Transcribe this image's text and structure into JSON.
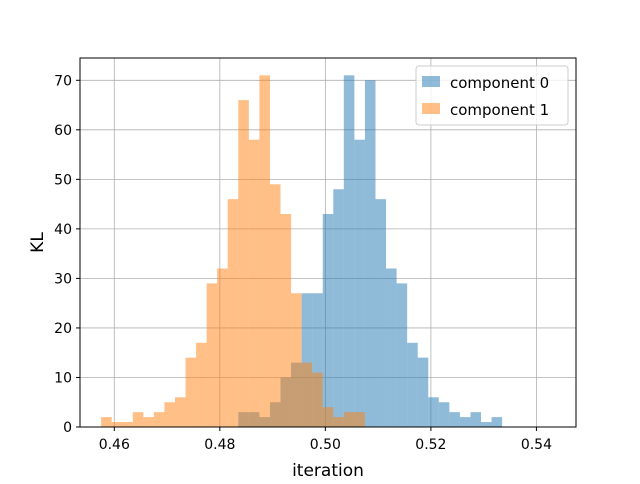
{
  "chart_data": {
    "type": "histogram",
    "xlabel": "iteration",
    "ylabel": "KL",
    "xlim": [
      0.4535,
      0.5475
    ],
    "ylim": [
      0,
      74.5
    ],
    "xticks": [
      0.46,
      0.48,
      0.5,
      0.52,
      0.54
    ],
    "xtick_labels": [
      "0.46",
      "0.48",
      "0.50",
      "0.52",
      "0.54"
    ],
    "yticks": [
      0,
      10,
      20,
      30,
      40,
      50,
      60,
      70
    ],
    "ytick_labels": [
      "0",
      "10",
      "20",
      "30",
      "40",
      "50",
      "60",
      "70"
    ],
    "grid": true,
    "legend_position": "top-right",
    "series": [
      {
        "name": "component 0",
        "color": "#1f77b4",
        "alpha": 0.5,
        "bin_start": 0.4835,
        "bin_width": 0.002,
        "counts": [
          3,
          3,
          2,
          5,
          10,
          13,
          27,
          27,
          43,
          48,
          71,
          58,
          70,
          46,
          32,
          29,
          17,
          14,
          6,
          5,
          3,
          2,
          3,
          1,
          2
        ]
      },
      {
        "name": "component 1",
        "color": "#ff7f0e",
        "alpha": 0.5,
        "bin_start": 0.4575,
        "bin_width": 0.002,
        "counts": [
          2,
          1,
          1,
          3,
          2,
          3,
          5,
          6,
          14,
          17,
          29,
          32,
          46,
          66,
          58,
          71,
          49,
          43,
          27,
          13,
          11,
          4,
          2,
          3,
          3
        ]
      }
    ]
  }
}
